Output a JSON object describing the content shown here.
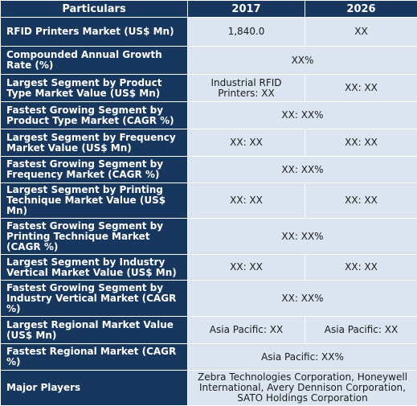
{
  "headers": [
    "Particulars",
    "2017",
    "2026"
  ],
  "rows": [
    {
      "label": "RFID Printers Market (US$ Mn)",
      "v2017": "1,840.0",
      "v2026": "XX"
    },
    {
      "label": "Compounded Annual Growth Rate (%)",
      "span": "XX%"
    },
    {
      "label": "Largest Segment by Product Type Market Value (US$ Mn)",
      "v2017": "Industrial RFID Printers: XX",
      "v2026": "XX: XX"
    },
    {
      "label": "Fastest Growing Segment by Product Type Market (CAGR %)",
      "span": "XX: XX%"
    },
    {
      "label": "Largest Segment by Frequency Market Value (US$ Mn)",
      "v2017": "XX: XX",
      "v2026": "XX: XX"
    },
    {
      "label": "Fastest Growing Segment by Frequency Market (CAGR %)",
      "span": "XX: XX%"
    },
    {
      "label": "Largest Segment by Printing Technique Market Value (US$ Mn)",
      "v2017": "XX: XX",
      "v2026": "XX: XX"
    },
    {
      "label": "Fastest Growing Segment by Printing Technique Market (CAGR %)",
      "span": "XX: XX%"
    },
    {
      "label": "Largest Segment by Industry Vertical Market Value (US$ Mn)",
      "v2017": "XX: XX",
      "v2026": "XX: XX"
    },
    {
      "label": "Fastest Growing Segment by Industry Vertical Market (CAGR %)",
      "span": "XX: XX%"
    },
    {
      "label": "Largest Regional Market Value (US$ Mn)",
      "v2017": "Asia Pacific: XX",
      "v2026": "Asia Pacific: XX"
    },
    {
      "label": "Fastest Regional Market (CAGR %)",
      "span": "Asia Pacific: XX%"
    },
    {
      "label": "Major Players",
      "span": "Zebra Technologies Corporation, Honeywell International, Avery Dennison Corporation, SATO Holdings Corporation"
    }
  ]
}
